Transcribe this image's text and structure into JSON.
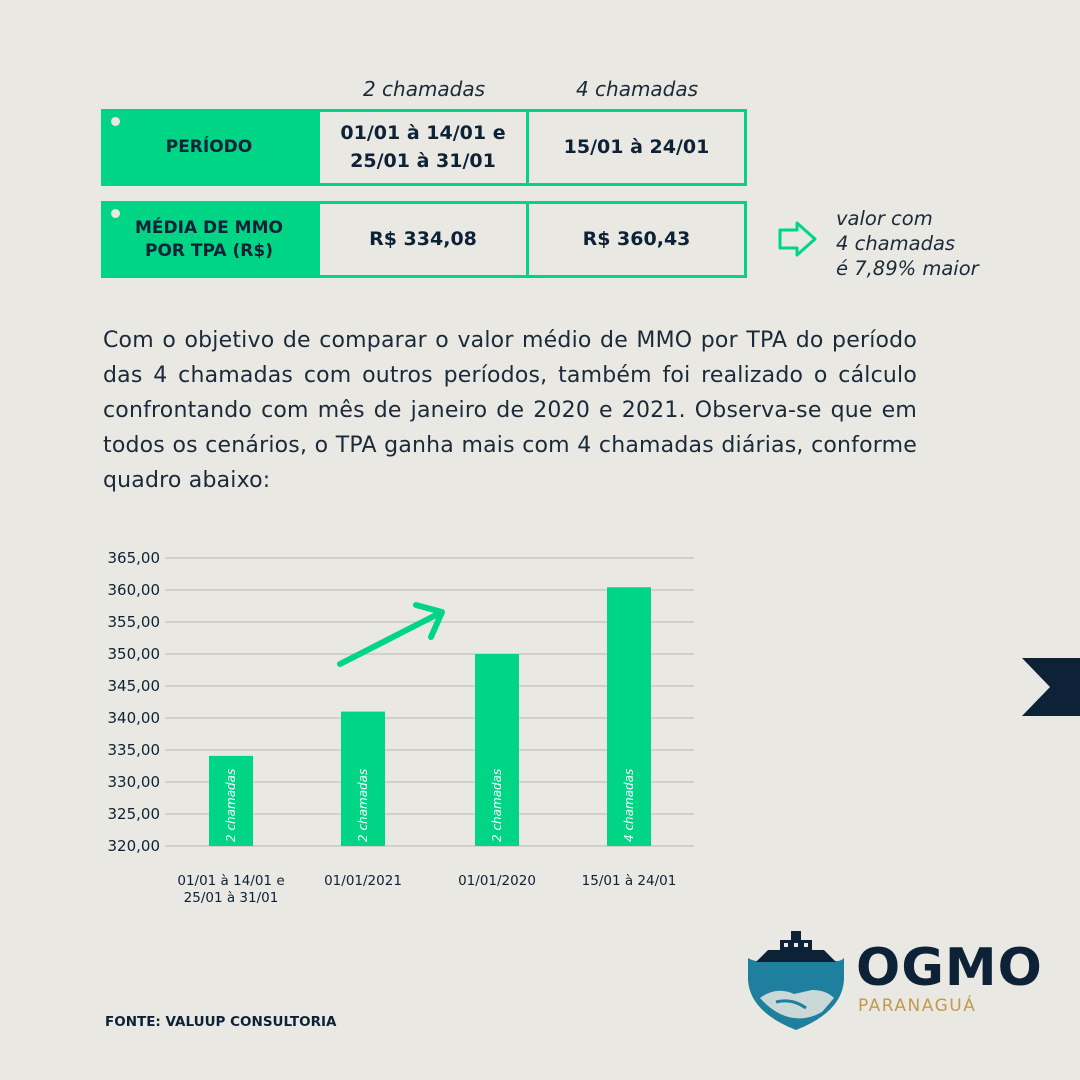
{
  "table": {
    "col_headers": [
      "2 chamadas",
      "4 chamadas"
    ],
    "rows": [
      {
        "label_lines": [
          "PERÍODO"
        ],
        "values": [
          [
            "01/01 à 14/01 e",
            "25/01 à 31/01"
          ],
          [
            "15/01 à 24/01"
          ]
        ]
      },
      {
        "label_lines": [
          "MÉDIA DE MMO",
          "POR TPA (R$)"
        ],
        "values": [
          [
            "R$ 334,08"
          ],
          [
            "R$ 360,43"
          ]
        ]
      }
    ]
  },
  "note": {
    "lines": [
      "valor com",
      "4 chamadas",
      "é 7,89% maior"
    ],
    "icon": "arrow-right-outline-icon"
  },
  "paragraph": "Com o objetivo de comparar o valor médio de MMO por TPA do período das 4 chamadas com outros períodos, também foi realizado o cálculo confrontando com mês de janeiro de 2020 e 2021. Observa-se que em todos os cenários, o TPA ganha mais com 4 chamadas diárias, conforme quadro abaixo:",
  "chart_data": {
    "type": "bar",
    "categories": [
      [
        "01/01 à 14/01 e",
        "25/01 à 31/01"
      ],
      [
        "01/01/2021"
      ],
      [
        "01/01/2020"
      ],
      [
        "15/01 à 24/01"
      ]
    ],
    "values": [
      334.08,
      341.0,
      350.0,
      360.43
    ],
    "bar_labels": [
      "2 chamadas",
      "2 chamadas",
      "2 chamadas",
      "4 chamadas"
    ],
    "yticks": [
      "320,00",
      "325,00",
      "330,00",
      "335,00",
      "340,00",
      "345,00",
      "350,00",
      "355,00",
      "360,00",
      "365,00"
    ],
    "ylim": [
      320,
      365
    ],
    "grid": true,
    "annotation": "trend-arrow-up-icon"
  },
  "source": "FONTE: VALUUP CONSULTORIA",
  "brand": {
    "name": "OGMO",
    "subtitle": "PARANAGUÁ"
  },
  "colors": {
    "accent": "#00d586",
    "navy": "#0d2236",
    "background": "#e9e8e2",
    "gold": "#c49a4a",
    "teal": "#1f7f9f"
  }
}
